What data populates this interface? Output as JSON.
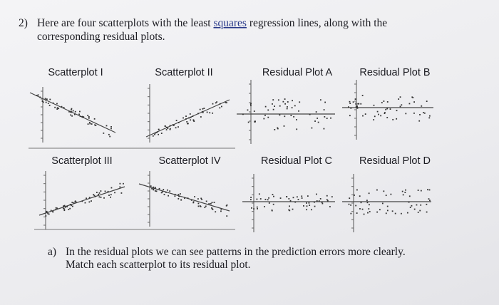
{
  "question": {
    "number": "2)",
    "text_before": "Here are four scatterplots with the least ",
    "underlined": "squares",
    "text_after": " regression lines, along with the",
    "line2": "corresponding residual plots."
  },
  "panels": [
    {
      "label": "Scatterplot I"
    },
    {
      "label": "Scatterplot II"
    },
    {
      "label": "Residual Plot A"
    },
    {
      "label": "Residual Plot B"
    },
    {
      "label": "Scatterplot III"
    },
    {
      "label": "Scatterplot IV"
    },
    {
      "label": "Residual Plot C"
    },
    {
      "label": "Residual Plot D"
    }
  ],
  "part_a": {
    "label": "a)",
    "line1": "In the residual plots we can see patterns in the prediction errors more clearly.",
    "line2": "Match each scatterplot to its residual plot."
  }
}
